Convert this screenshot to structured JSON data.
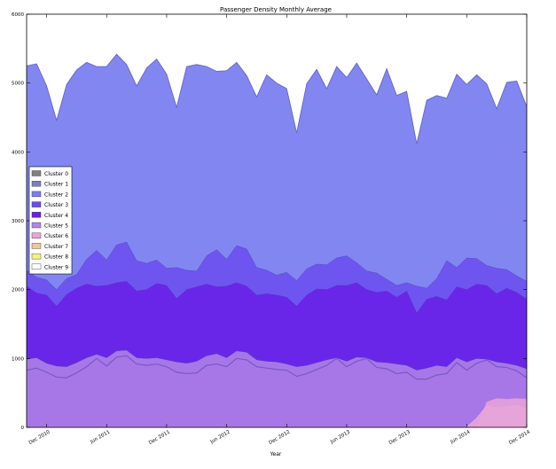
{
  "chart_data": {
    "type": "area",
    "title": "Passenger Density Monthly Average",
    "xlabel": "Year",
    "ylabel": "",
    "ylim": [
      0,
      6000
    ],
    "x_range": [
      "2010-10",
      "2014-12"
    ],
    "yticks": [
      0,
      1000,
      2000,
      3000,
      4000,
      5000,
      6000
    ],
    "xticks": [
      "2010-12",
      "2011-06",
      "2011-12",
      "2012-06",
      "2012-12",
      "2013-06",
      "2013-12",
      "2014-06",
      "2014-12"
    ],
    "xtick_labels": [
      "Dec 2010",
      "Jun 2011",
      "Dec 2011",
      "Jun 2012",
      "Dec 2012",
      "Jun 2013",
      "Dec 2013",
      "Jun 2014",
      "Dec 2014"
    ],
    "grid": false,
    "legend_position": "center-left",
    "stacked": false,
    "x": [
      "2010-10",
      "2010-11",
      "2010-12",
      "2011-01",
      "2011-02",
      "2011-03",
      "2011-04",
      "2011-05",
      "2011-06",
      "2011-07",
      "2011-08",
      "2011-09",
      "2011-10",
      "2011-11",
      "2011-12",
      "2012-01",
      "2012-02",
      "2012-03",
      "2012-04",
      "2012-05",
      "2012-06",
      "2012-07",
      "2012-08",
      "2012-09",
      "2012-10",
      "2012-11",
      "2012-12",
      "2013-01",
      "2013-02",
      "2013-03",
      "2013-04",
      "2013-05",
      "2013-06",
      "2013-07",
      "2013-08",
      "2013-09",
      "2013-10",
      "2013-11",
      "2013-12",
      "2014-01",
      "2014-02",
      "2014-03",
      "2014-04",
      "2014-05",
      "2014-06",
      "2014-07",
      "2014-08",
      "2014-09",
      "2014-10",
      "2014-11",
      "2014-12"
    ],
    "series": [
      {
        "name": "Cluster 0",
        "color": "#808080",
        "values": [
          0,
          0,
          0,
          0,
          0,
          0,
          0,
          0,
          0,
          0,
          0,
          0,
          0,
          0,
          0,
          0,
          0,
          0,
          0,
          0,
          0,
          0,
          0,
          0,
          0,
          0,
          0,
          0,
          0,
          0,
          0,
          0,
          0,
          0,
          0,
          0,
          0,
          0,
          0,
          0,
          0,
          0,
          0,
          0,
          0,
          0,
          0,
          0,
          0,
          0,
          0
        ]
      },
      {
        "name": "Cluster 1",
        "color": "#7a7fc4",
        "values": [
          0,
          0,
          0,
          0,
          0,
          0,
          0,
          0,
          0,
          0,
          0,
          0,
          0,
          0,
          0,
          0,
          0,
          0,
          0,
          0,
          0,
          0,
          0,
          0,
          0,
          0,
          0,
          0,
          0,
          0,
          0,
          0,
          0,
          0,
          0,
          0,
          0,
          0,
          0,
          0,
          0,
          0,
          0,
          0,
          0,
          0,
          0,
          0,
          0,
          0,
          0
        ]
      },
      {
        "name": "Cluster 2",
        "color": "#7b7ff0",
        "values": [
          5250,
          5280,
          4960,
          4460,
          4980,
          5190,
          5300,
          5240,
          5240,
          5420,
          5270,
          4960,
          5220,
          5350,
          5130,
          4650,
          5240,
          5270,
          5240,
          5170,
          5180,
          5300,
          5110,
          4800,
          5120,
          5000,
          4920,
          4280,
          4990,
          5200,
          4920,
          5240,
          5080,
          5290,
          5060,
          4830,
          5210,
          4820,
          4880,
          4120,
          4750,
          4820,
          4780,
          5130,
          4980,
          5120,
          4990,
          4630,
          5010,
          5030,
          4660
        ],
        "note": ""
      },
      {
        "name": "Cluster 3",
        "color": "#6b4cf0",
        "values": [
          2280,
          2180,
          2140,
          2000,
          2160,
          2220,
          2440,
          2570,
          2430,
          2650,
          2690,
          2420,
          2380,
          2430,
          2310,
          2320,
          2280,
          2270,
          2490,
          2580,
          2440,
          2640,
          2590,
          2320,
          2280,
          2210,
          2250,
          2130,
          2300,
          2370,
          2360,
          2460,
          2490,
          2390,
          2270,
          2240,
          2150,
          2060,
          2100,
          2050,
          2020,
          2160,
          2420,
          2320,
          2460,
          2450,
          2350,
          2310,
          2290,
          2200,
          2120
        ]
      },
      {
        "name": "Cluster 4",
        "color": "#6a1fe6",
        "values": [
          2050,
          1950,
          1920,
          1760,
          1930,
          2020,
          2080,
          2050,
          2060,
          2100,
          2120,
          1980,
          2000,
          2090,
          2060,
          1870,
          2000,
          2040,
          2080,
          2040,
          2050,
          2100,
          2050,
          1920,
          1940,
          1920,
          1890,
          1760,
          1920,
          2010,
          2000,
          2060,
          2060,
          2100,
          2000,
          1960,
          1980,
          1890,
          1980,
          1660,
          1860,
          1900,
          1850,
          2040,
          2000,
          2080,
          2060,
          1940,
          2020,
          1960,
          1860
        ]
      },
      {
        "name": "Cluster 5",
        "color": "#b186e6",
        "values": [
          990,
          1010,
          930,
          890,
          880,
          940,
          1010,
          1060,
          1010,
          1110,
          1120,
          1010,
          1000,
          1010,
          980,
          950,
          930,
          960,
          1040,
          1070,
          1010,
          1110,
          1090,
          980,
          960,
          950,
          920,
          880,
          900,
          940,
          980,
          1010,
          960,
          1020,
          1010,
          950,
          940,
          920,
          900,
          830,
          860,
          900,
          880,
          1010,
          950,
          1000,
          990,
          950,
          930,
          900,
          850
        ]
      },
      {
        "name": "Cluster 6",
        "color": "#e8a4d8",
        "values": [
          0,
          0,
          0,
          0,
          0,
          0,
          0,
          0,
          0,
          0,
          0,
          0,
          0,
          0,
          0,
          0,
          0,
          0,
          0,
          0,
          0,
          0,
          0,
          0,
          0,
          0,
          0,
          0,
          0,
          0,
          0,
          0,
          0,
          0,
          0,
          0,
          0,
          0,
          0,
          0,
          0,
          0,
          0,
          0,
          0,
          0,
          370,
          420,
          410,
          420,
          410
        ]
      },
      {
        "name": "Cluster 7",
        "color": "#f2c59a",
        "values": [
          0,
          0,
          0,
          0,
          0,
          0,
          0,
          0,
          0,
          0,
          0,
          0,
          0,
          0,
          0,
          0,
          0,
          0,
          0,
          0,
          0,
          0,
          0,
          0,
          0,
          0,
          0,
          0,
          0,
          0,
          0,
          0,
          0,
          0,
          0,
          0,
          0,
          0,
          0,
          0,
          0,
          0,
          0,
          0,
          0,
          0,
          0,
          0,
          0,
          0,
          0
        ]
      },
      {
        "name": "Cluster 8",
        "color": "#f5f08a",
        "values": [
          0,
          0,
          0,
          0,
          0,
          0,
          0,
          0,
          0,
          0,
          0,
          0,
          0,
          0,
          0,
          0,
          0,
          0,
          0,
          0,
          0,
          0,
          0,
          0,
          0,
          0,
          0,
          0,
          0,
          0,
          0,
          0,
          0,
          0,
          0,
          0,
          0,
          0,
          0,
          0,
          0,
          0,
          0,
          0,
          0,
          0,
          0,
          0,
          0,
          0,
          0
        ]
      },
      {
        "name": "Cluster 9",
        "color": "#ffffff",
        "values": [
          0,
          0,
          0,
          0,
          0,
          0,
          0,
          0,
          0,
          0,
          0,
          0,
          0,
          0,
          0,
          0,
          0,
          0,
          0,
          0,
          0,
          0,
          0,
          0,
          0,
          0,
          0,
          0,
          0,
          0,
          0,
          0,
          0,
          0,
          0,
          0,
          0,
          0,
          0,
          0,
          0,
          0,
          0,
          0,
          0,
          0,
          0,
          0,
          0,
          0,
          0
        ]
      }
    ],
    "inner_lines": [
      {
        "name": "",
        "color": "#7a57c8",
        "values": [
          830,
          860,
          800,
          730,
          720,
          790,
          880,
          1000,
          890,
          1020,
          1040,
          920,
          900,
          920,
          880,
          800,
          780,
          790,
          900,
          920,
          880,
          1000,
          980,
          880,
          860,
          840,
          830,
          740,
          780,
          840,
          900,
          1000,
          880,
          960,
          1000,
          870,
          850,
          780,
          800,
          700,
          700,
          760,
          780,
          940,
          830,
          930,
          980,
          880,
          870,
          820,
          720
        ]
      },
      {
        "name": "",
        "color": "#e8a4d8",
        "values": [
          0,
          0,
          0,
          0,
          0,
          0,
          0,
          0,
          0,
          0,
          0,
          0,
          0,
          0,
          0,
          0,
          0,
          0,
          0,
          0,
          0,
          0,
          0,
          0,
          0,
          0,
          0,
          0,
          0,
          0,
          0,
          0,
          0,
          0,
          0,
          0,
          0,
          0,
          0,
          0,
          0,
          0,
          0,
          0,
          0,
          130,
          310,
          280,
          300,
          320,
          270
        ]
      }
    ]
  }
}
